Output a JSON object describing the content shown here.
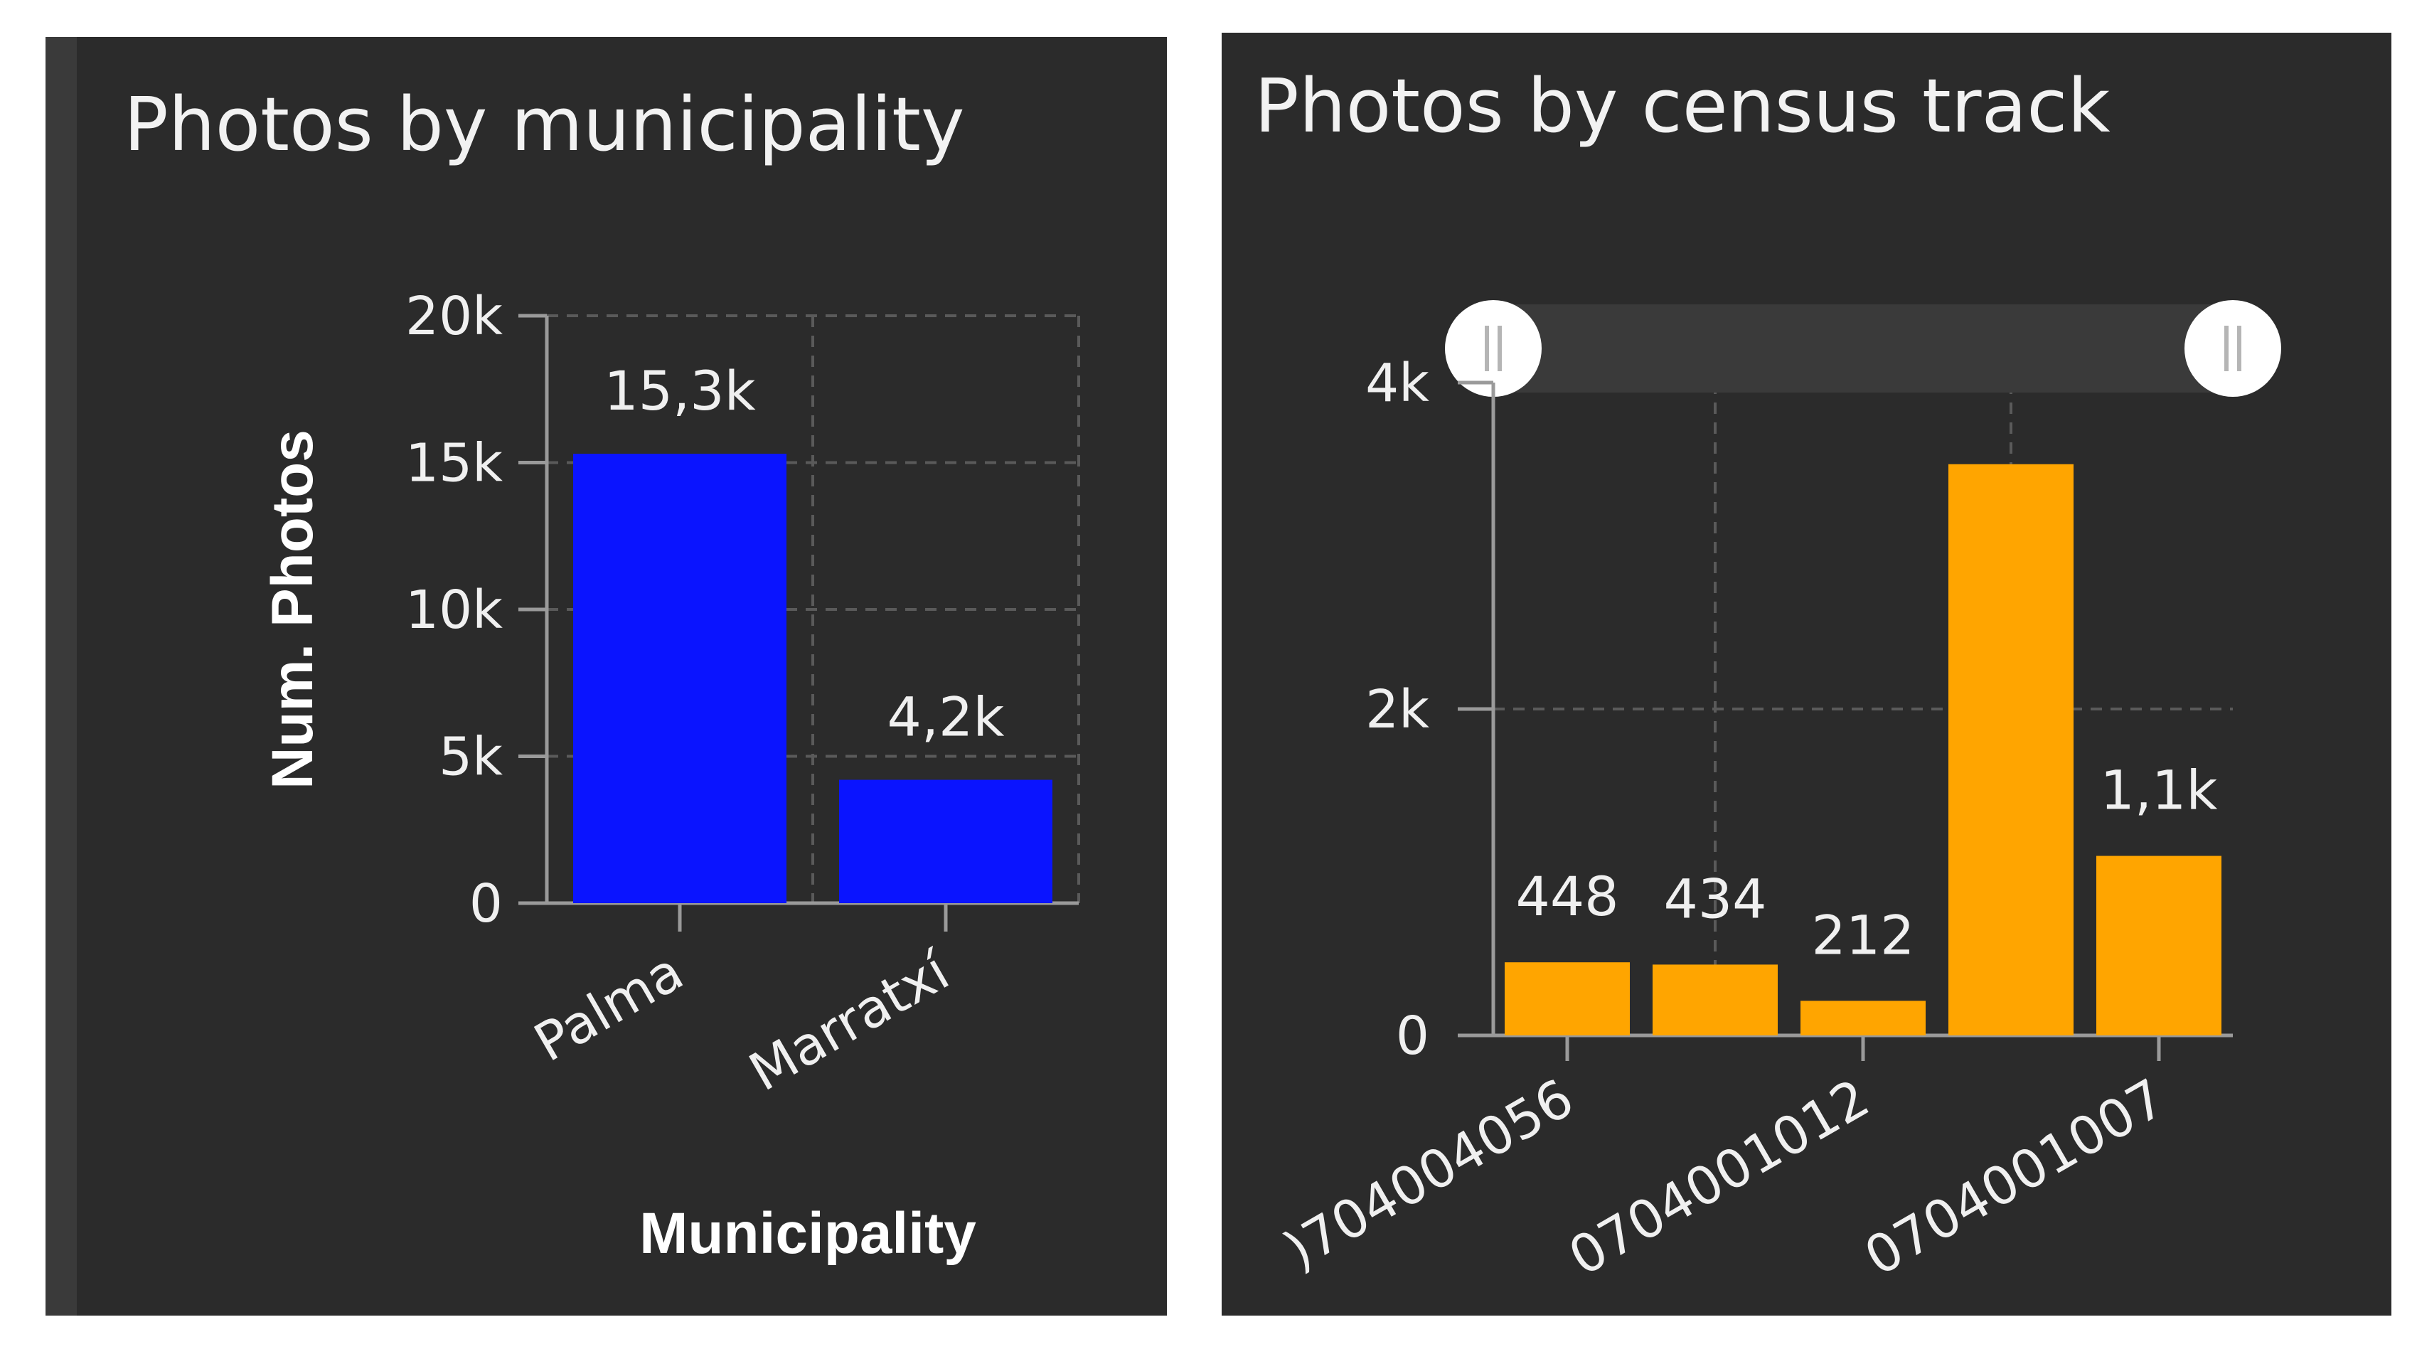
{
  "panels": [
    {
      "title": "Photos by municipality"
    },
    {
      "title": "Photos by census track"
    }
  ],
  "chart_data": [
    {
      "type": "bar",
      "title": "Photos by municipality",
      "xlabel": "Municipality",
      "ylabel": "Num. Photos",
      "categories": [
        "Palma",
        "Marratxí"
      ],
      "values": [
        15300,
        4200
      ],
      "data_labels": [
        "15,3k",
        "4,2k"
      ],
      "yticks": [
        0,
        5000,
        10000,
        15000,
        20000
      ],
      "ytick_labels": [
        "0",
        "5k",
        "10k",
        "15k",
        "20k"
      ],
      "ylim": [
        0,
        20000
      ],
      "bar_color": "#0a14ff",
      "grid": true
    },
    {
      "type": "bar",
      "title": "Photos by census track",
      "xlabel": "",
      "ylabel": "",
      "categories": [
        "0704004056",
        "",
        "0704001012",
        "",
        "0704001007"
      ],
      "xtick_labels": [
        ")704004056",
        "0704001012",
        "0704001007"
      ],
      "values": [
        448,
        434,
        212,
        3500,
        1100
      ],
      "data_labels": [
        "448",
        "434",
        "212",
        "",
        "1,1k"
      ],
      "yticks": [
        0,
        2000,
        4000
      ],
      "ytick_labels": [
        "0",
        "2k",
        "4k"
      ],
      "ylim": [
        0,
        4000
      ],
      "bar_color": "#ffa500",
      "grid": true,
      "range_slider": {
        "start": 0,
        "end": 1
      }
    }
  ]
}
